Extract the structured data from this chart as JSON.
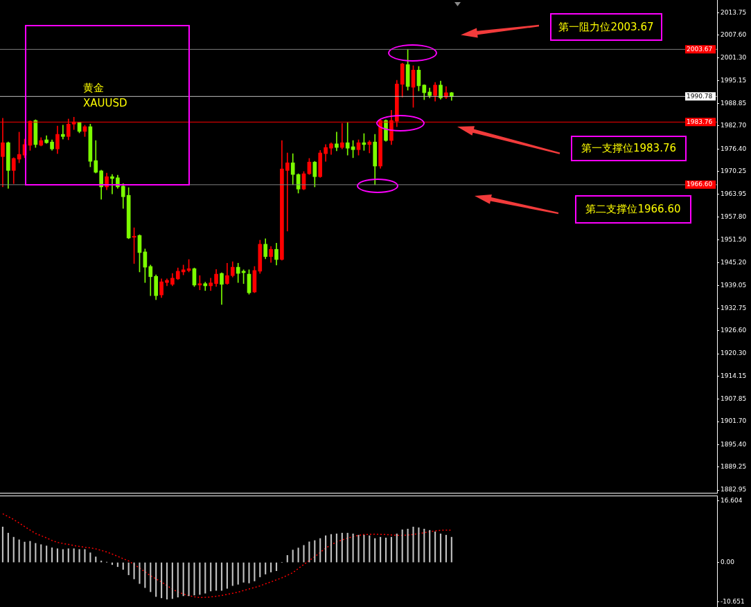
{
  "chart_data": [
    {
      "type": "candlestick",
      "title": "黄金",
      "subtitle": "XAUUSD",
      "tick_labels": "y",
      "categories": [
        null,
        null,
        null,
        null,
        null,
        null,
        null,
        null,
        null,
        null,
        null,
        null,
        null,
        null,
        null,
        null,
        null,
        null,
        null,
        null,
        null,
        null,
        null,
        null,
        null,
        null,
        null,
        null,
        null,
        null,
        null,
        null,
        null,
        null,
        null,
        null,
        null,
        null,
        null,
        null,
        null,
        null,
        null,
        null,
        null,
        null,
        null,
        null,
        null,
        null,
        null,
        null,
        null,
        null,
        null,
        null,
        null,
        null,
        null,
        null,
        null,
        null,
        null,
        null,
        null,
        null,
        null,
        null,
        null,
        null,
        null,
        null,
        null,
        null,
        null,
        null,
        null,
        null,
        null,
        null,
        null,
        null,
        null,
        null,
        null,
        null,
        null,
        null,
        null,
        null,
        null,
        null,
        null,
        null,
        null,
        null,
        null,
        null,
        null,
        null,
        null,
        null,
        null,
        null,
        null,
        null,
        null,
        null,
        null,
        null,
        null,
        null,
        null,
        null,
        null,
        null,
        null,
        null,
        null,
        null,
        null,
        null,
        null,
        null,
        null,
        null,
        null,
        null,
        null,
        null,
        null
      ],
      "ohlc": [
        [
          1974.3,
          1984.8,
          1966.0,
          1978.1
        ],
        [
          1978.1,
          1978.3,
          1965.6,
          1970.5
        ],
        [
          1970.5,
          1974.0,
          1966.9,
          1973.8
        ],
        [
          1973.6,
          1981.0,
          1972.6,
          1974.9
        ],
        [
          1974.7,
          1979.1,
          1974.0,
          1977.6
        ],
        [
          1977.4,
          1984.1,
          1976.0,
          1984.0
        ],
        [
          1984.2,
          1984.4,
          1976.8,
          1977.6
        ],
        [
          1977.4,
          1979.5,
          1977.2,
          1978.7
        ],
        [
          1978.9,
          1980.0,
          1977.9,
          1978.1
        ],
        [
          1978.3,
          1978.9,
          1976.0,
          1976.4
        ],
        [
          1976.4,
          1982.7,
          1975.1,
          1980.4
        ],
        [
          1980.4,
          1982.9,
          1979.1,
          1979.8
        ],
        [
          1979.8,
          1984.6,
          1978.9,
          1983.2
        ],
        [
          1983.2,
          1985.1,
          1981.7,
          1983.8
        ],
        [
          1983.6,
          1983.7,
          1980.8,
          1981.2
        ],
        [
          1981.2,
          1982.9,
          1979.8,
          1982.5
        ],
        [
          1982.5,
          1983.2,
          1971.5,
          1973.0
        ],
        [
          1973.2,
          1978.7,
          1969.8,
          1970.0
        ],
        [
          1970.4,
          1970.6,
          1962.6,
          1966.0
        ],
        [
          1966.0,
          1969.8,
          1965.2,
          1968.8
        ],
        [
          1968.8,
          1969.4,
          1964.1,
          1968.3
        ],
        [
          1968.5,
          1969.2,
          1965.6,
          1966.0
        ],
        [
          1966.2,
          1966.9,
          1960.1,
          1963.3
        ],
        [
          1963.7,
          1965.8,
          1951.8,
          1952.0
        ],
        [
          1952.2,
          1954.8,
          1945.0,
          1952.5
        ],
        [
          1952.7,
          1952.9,
          1942.7,
          1948.0
        ],
        [
          1948.2,
          1949.0,
          1939.8,
          1944.0
        ],
        [
          1944.2,
          1944.6,
          1936.2,
          1941.4
        ],
        [
          1941.5,
          1941.9,
          1935.1,
          1936.2
        ],
        [
          1936.4,
          1940.8,
          1935.7,
          1940.0
        ],
        [
          1939.8,
          1940.8,
          1938.9,
          1940.4
        ],
        [
          1939.3,
          1942.3,
          1938.9,
          1941.0
        ],
        [
          1940.8,
          1943.8,
          1940.6,
          1942.9
        ],
        [
          1942.7,
          1944.6,
          1941.9,
          1943.3
        ],
        [
          1943.1,
          1946.1,
          1942.7,
          1943.6
        ],
        [
          1943.6,
          1943.8,
          1938.7,
          1939.1
        ],
        [
          1939.1,
          1941.7,
          1937.8,
          1939.5
        ],
        [
          1939.5,
          1939.9,
          1937.6,
          1938.9
        ],
        [
          1938.9,
          1941.0,
          1937.6,
          1939.7
        ],
        [
          1939.5,
          1943.4,
          1938.7,
          1942.1
        ],
        [
          1942.3,
          1942.5,
          1933.8,
          1939.3
        ],
        [
          1939.5,
          1945.1,
          1939.3,
          1941.7
        ],
        [
          1941.7,
          1945.5,
          1941.3,
          1944.0
        ],
        [
          1944.0,
          1945.1,
          1939.8,
          1942.3
        ],
        [
          1942.9,
          1943.3,
          1939.5,
          1942.5
        ],
        [
          1942.1,
          1943.3,
          1936.6,
          1937.0
        ],
        [
          1937.2,
          1944.2,
          1937.0,
          1943.1
        ],
        [
          1942.9,
          1951.4,
          1942.3,
          1950.3
        ],
        [
          1950.3,
          1951.8,
          1946.3,
          1946.9
        ],
        [
          1946.9,
          1949.7,
          1945.3,
          1948.9
        ],
        [
          1948.9,
          1950.6,
          1944.6,
          1946.1
        ],
        [
          1946.1,
          1978.7,
          1945.9,
          1970.9
        ],
        [
          1970.5,
          1975.3,
          1953.9,
          1972.6
        ],
        [
          1972.6,
          1975.1,
          1966.6,
          1969.4
        ],
        [
          1969.4,
          1969.6,
          1964.3,
          1965.4
        ],
        [
          1965.4,
          1970.2,
          1965.2,
          1969.6
        ],
        [
          1969.6,
          1973.8,
          1969.4,
          1972.8
        ],
        [
          1972.8,
          1973.0,
          1966.0,
          1968.8
        ],
        [
          1968.8,
          1976.0,
          1968.6,
          1975.3
        ],
        [
          1975.1,
          1977.6,
          1973.0,
          1976.8
        ],
        [
          1976.6,
          1978.1,
          1974.9,
          1977.8
        ],
        [
          1977.8,
          1981.0,
          1975.9,
          1976.8
        ],
        [
          1976.8,
          1983.4,
          1976.4,
          1978.1
        ],
        [
          1978.1,
          1983.6,
          1974.7,
          1976.6
        ],
        [
          1977.0,
          1978.7,
          1974.0,
          1976.2
        ],
        [
          1976.2,
          1978.9,
          1974.7,
          1978.1
        ],
        [
          1978.1,
          1980.6,
          1976.0,
          1977.6
        ],
        [
          1977.6,
          1978.7,
          1975.3,
          1978.3
        ],
        [
          1978.3,
          1980.4,
          1966.6,
          1971.7
        ],
        [
          1971.7,
          1984.4,
          1971.1,
          1984.2
        ],
        [
          1984.2,
          1984.4,
          1978.5,
          1978.7
        ],
        [
          1978.7,
          1987.0,
          1977.6,
          1984.2
        ],
        [
          1984.0,
          1995.2,
          1982.5,
          1994.2
        ],
        [
          1994.1,
          1999.9,
          1990.6,
          1999.7
        ],
        [
          1999.5,
          2003.7,
          1992.5,
          1993.5
        ],
        [
          1993.3,
          1999.2,
          1987.8,
          1998.0
        ],
        [
          1998.0,
          1999.0,
          1992.3,
          1993.7
        ],
        [
          1993.9,
          1994.0,
          1989.9,
          1991.8
        ],
        [
          1992.0,
          1993.1,
          1990.4,
          1991.0
        ],
        [
          1991.0,
          1994.6,
          1989.5,
          1993.9
        ],
        [
          1993.9,
          1995.0,
          1990.0,
          1990.4
        ],
        [
          1990.6,
          1993.5,
          1990.2,
          1991.8
        ],
        [
          1991.8,
          1991.9,
          1989.7,
          1990.8
        ],
        null,
        null,
        null,
        null,
        null,
        null,
        null,
        null,
        null,
        null,
        null,
        null,
        null,
        null,
        null,
        null,
        null,
        null,
        null,
        null,
        null,
        null,
        null,
        null,
        null,
        null,
        null,
        null,
        null,
        null,
        null,
        null,
        null,
        null,
        null,
        null,
        null,
        null,
        null,
        null,
        null,
        null,
        null,
        null,
        null,
        null,
        null,
        null
      ],
      "colors": [
        "#ff0000",
        "#7cfc00",
        "#ff0000",
        "#ff0000",
        "#ff0000",
        "#ff0000",
        "#7cfc00",
        "#ff0000",
        "#7cfc00",
        "#7cfc00",
        "#ff0000",
        "#7cfc00",
        "#ff0000",
        "#ff0000",
        "#7cfc00",
        "#ff0000",
        "#7cfc00",
        "#7cfc00",
        "#7cfc00",
        "#ff0000",
        "#7cfc00",
        "#7cfc00",
        "#7cfc00",
        "#7cfc00",
        "#ff0000",
        "#7cfc00",
        "#7cfc00",
        "#7cfc00",
        "#7cfc00",
        "#ff0000",
        "#ff0000",
        "#ff0000",
        "#ff0000",
        "#ff0000",
        "#ff0000",
        "#7cfc00",
        "#ff0000",
        "#7cfc00",
        "#ff0000",
        "#ff0000",
        "#7cfc00",
        "#ff0000",
        "#ff0000",
        "#7cfc00",
        "#7cfc00",
        "#7cfc00",
        "#ff0000",
        "#ff0000",
        "#7cfc00",
        "#ff0000",
        "#7cfc00",
        "#ff0000",
        "#ff0000",
        "#7cfc00",
        "#7cfc00",
        "#ff0000",
        "#ff0000",
        "#7cfc00",
        "#ff0000",
        "#ff0000",
        "#ff0000",
        "#7cfc00",
        "#ff0000",
        "#7cfc00",
        "#7cfc00",
        "#ff0000",
        "#7cfc00",
        "#ff0000",
        "#7cfc00",
        "#ff0000",
        "#7cfc00",
        "#ff0000",
        "#ff0000",
        "#ff0000",
        "#7cfc00",
        "#ff0000",
        "#7cfc00",
        "#7cfc00",
        "#7cfc00",
        "#ff0000",
        "#7cfc00",
        "#ff0000",
        "#7cfc00",
        null,
        null,
        null,
        null,
        null,
        null,
        null,
        null,
        null,
        null,
        null,
        null,
        null,
        null,
        null,
        null,
        null,
        null,
        null,
        null,
        null,
        null,
        null,
        null,
        null,
        null,
        null,
        null,
        null,
        null,
        null,
        null,
        null,
        null,
        null,
        null,
        null,
        null,
        null,
        null,
        null,
        null,
        null,
        null,
        null,
        null,
        null,
        null
      ],
      "ylim": [
        1882.2,
        2017.2
      ],
      "yticks": [
        2013.75,
        {
          "value": 2007.6,
          "label": "2007.60"
        },
        {
          "value": 2001.3,
          "label": "2001.30"
        },
        1995.15,
        1988.85,
        {
          "value": 1982.7,
          "label": "1982.70"
        },
        {
          "value": 1976.4,
          "label": "1976.40"
        },
        1970.25,
        1963.95,
        {
          "value": 1957.8,
          "label": "1957.80"
        },
        {
          "value": 1951.5,
          "label": "1951.50"
        },
        {
          "value": 1945.2,
          "label": "1945.20"
        },
        1939.05,
        1932.75,
        {
          "value": 1926.6,
          "label": "1926.60"
        },
        {
          "value": 1920.3,
          "label": "1920.30"
        },
        1914.15,
        1907.85,
        {
          "value": 1901.7,
          "label": "1901.70"
        },
        {
          "value": 1895.4,
          "label": "1895.40"
        },
        1889.25,
        1882.95
      ],
      "ref_lines": [
        {
          "axis": "y",
          "value": 2003.67,
          "label": "2003.67",
          "color": "#808080"
        },
        {
          "axis": "y",
          "value": 1990.78,
          "label": "1990.78",
          "color": "#c0c0c0"
        },
        {
          "axis": "y",
          "value": 1983.76,
          "label": "1983.76",
          "color": "#ff0000"
        },
        {
          "axis": "y",
          "value": 1966.6,
          "label": "1966.60",
          "color": "#808080"
        }
      ],
      "annotations": [
        {
          "text": "第一阻力位2003.67",
          "y": 2003.67
        },
        {
          "text": "第一支撑位1983.76",
          "y": 1983.76
        },
        {
          "text": "第二支撑位1966.60",
          "y": 1966.6
        }
      ]
    },
    {
      "type": "bar",
      "tick_labels": "y",
      "marker": "none",
      "categories": [
        null,
        null,
        null,
        null,
        null,
        null,
        null,
        null,
        null,
        null,
        null,
        null,
        null,
        null,
        null,
        null,
        null,
        null,
        null,
        null,
        null,
        null,
        null,
        null,
        null,
        null,
        null,
        null,
        null,
        null,
        null,
        null,
        null,
        null,
        null,
        null,
        null,
        null,
        null,
        null,
        null,
        null,
        null,
        null,
        null,
        null,
        null,
        null,
        null,
        null,
        null,
        null,
        null,
        null,
        null,
        null,
        null,
        null,
        null,
        null,
        null,
        null,
        null,
        null,
        null,
        null,
        null,
        null,
        null,
        null,
        null,
        null,
        null,
        null,
        null,
        null,
        null,
        null,
        null,
        null,
        null,
        null,
        null,
        null,
        null,
        null,
        null,
        null,
        null,
        null,
        null,
        null,
        null,
        null,
        null,
        null,
        null,
        null,
        null,
        null,
        null,
        null,
        null,
        null,
        null,
        null,
        null,
        null,
        null,
        null,
        null,
        null,
        null,
        null,
        null,
        null,
        null,
        null,
        null,
        null,
        null,
        null,
        null,
        null,
        null,
        null,
        null,
        null,
        null,
        null,
        null
      ],
      "series": [
        {
          "type": "bar",
          "color": "#c0c0c0",
          "values": [
            9.55,
            7.9,
            6.8,
            6.1,
            5.5,
            5.7,
            5.15,
            4.8,
            4.45,
            3.95,
            3.7,
            3.5,
            3.7,
            3.7,
            3.5,
            3.5,
            2.6,
            1.5,
            0.4,
            0.05,
            -0.6,
            -1.15,
            -1.9,
            -3.35,
            -4.45,
            -5.7,
            -6.8,
            -7.9,
            -9.2,
            -9.55,
            -9.9,
            -9.75,
            -9.35,
            -9.0,
            -9.0,
            -8.8,
            -8.65,
            -8.3,
            -7.7,
            -7.55,
            -7.55,
            -7.0,
            -6.25,
            -5.9,
            -5.35,
            -5.55,
            -5.0,
            -3.9,
            -3.15,
            -2.6,
            -2.25,
            0,
            1.9,
            3.35,
            3.9,
            4.6,
            5.55,
            5.9,
            6.45,
            7.2,
            7.55,
            7.7,
            7.9,
            7.9,
            7.7,
            7.35,
            7.35,
            7.2,
            6.45,
            6.8,
            6.6,
            6.8,
            7.7,
            8.8,
            9.0,
            9.55,
            9.35,
            9.0,
            8.65,
            8.25,
            7.7,
            7.35,
            6.8,
            null,
            null,
            null,
            null,
            null,
            null,
            null,
            null,
            null,
            null,
            null,
            null,
            null,
            null,
            null,
            null,
            null,
            null,
            null,
            null,
            null,
            null,
            null,
            null,
            null,
            null,
            null,
            null,
            null,
            null,
            null,
            null,
            null,
            null,
            null,
            null,
            null,
            null,
            null,
            null,
            null,
            null,
            null,
            null,
            null,
            null,
            null,
            null
          ]
        },
        {
          "type": "line",
          "color": "#ff0000",
          "line_style": "dotted",
          "values": [
            13.1,
            12.35,
            11.55,
            10.6,
            9.65,
            8.7,
            7.8,
            7.2,
            6.6,
            5.9,
            5.4,
            5.1,
            4.85,
            4.55,
            4.3,
            4.1,
            3.9,
            3.65,
            3.25,
            2.8,
            2.25,
            1.65,
            1.0,
            0.4,
            -0.55,
            -1.5,
            -2.55,
            -3.6,
            -4.45,
            -5.25,
            -6.25,
            -7.2,
            -7.95,
            -8.5,
            -8.95,
            -9.25,
            -9.45,
            -9.4,
            -9.3,
            -9.1,
            -8.9,
            -8.6,
            -8.3,
            -8.0,
            -7.55,
            -7.15,
            -6.75,
            -6.3,
            -5.75,
            -5.25,
            -4.7,
            -4.15,
            -3.45,
            -2.75,
            -1.65,
            -0.55,
            0.5,
            1.55,
            2.7,
            3.85,
            4.75,
            5.5,
            6.05,
            6.55,
            6.95,
            7.3,
            7.5,
            7.55,
            7.6,
            7.55,
            7.5,
            7.4,
            7.3,
            7.3,
            7.35,
            7.55,
            7.75,
            8.0,
            8.25,
            8.5,
            8.65,
            8.7,
            8.7,
            null,
            null,
            null,
            null,
            null,
            null,
            null,
            null,
            null,
            null,
            null,
            null,
            null,
            null,
            null,
            null,
            null,
            null,
            null,
            null,
            null,
            null,
            null,
            null,
            null,
            null,
            null,
            null,
            null,
            null,
            null,
            null,
            null,
            null,
            null,
            null,
            null,
            null,
            null,
            null,
            null,
            null,
            null,
            null,
            null,
            null,
            null,
            null
          ]
        }
      ],
      "ylim": [
        -12.0,
        18.0
      ],
      "yticks": [
        16.604,
        {
          "value": 0,
          "label": "0.00"
        },
        -10.651
      ]
    }
  ]
}
